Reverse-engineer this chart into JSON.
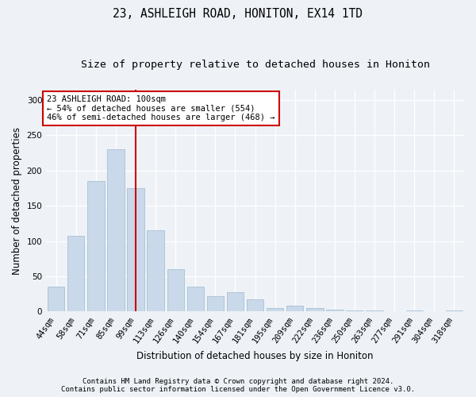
{
  "title": "23, ASHLEIGH ROAD, HONITON, EX14 1TD",
  "subtitle": "Size of property relative to detached houses in Honiton",
  "xlabel": "Distribution of detached houses by size in Honiton",
  "ylabel": "Number of detached properties",
  "categories": [
    "44sqm",
    "58sqm",
    "71sqm",
    "85sqm",
    "99sqm",
    "113sqm",
    "126sqm",
    "140sqm",
    "154sqm",
    "167sqm",
    "181sqm",
    "195sqm",
    "209sqm",
    "222sqm",
    "236sqm",
    "250sqm",
    "263sqm",
    "277sqm",
    "291sqm",
    "304sqm",
    "318sqm"
  ],
  "values": [
    35,
    107,
    185,
    230,
    175,
    115,
    60,
    35,
    22,
    27,
    17,
    5,
    8,
    5,
    3,
    2,
    1,
    0,
    1,
    0,
    2
  ],
  "bar_color": "#c9d9ea",
  "bar_edge_color": "#a8bfd4",
  "vline_index": 4,
  "vline_color": "#cc0000",
  "annotation_line1": "23 ASHLEIGH ROAD: 100sqm",
  "annotation_line2": "← 54% of detached houses are smaller (554)",
  "annotation_line3": "46% of semi-detached houses are larger (468) →",
  "annotation_box_facecolor": "#ffffff",
  "annotation_box_edgecolor": "#cc0000",
  "ylim": [
    0,
    315
  ],
  "yticks": [
    0,
    50,
    100,
    150,
    200,
    250,
    300
  ],
  "background_color": "#eef2f7",
  "plot_background_color": "#eef2f7",
  "grid_color": "#ffffff",
  "title_fontsize": 10.5,
  "subtitle_fontsize": 9.5,
  "xlabel_fontsize": 8.5,
  "ylabel_fontsize": 8.5,
  "tick_fontsize": 7.5,
  "annotation_fontsize": 7.5,
  "footer_fontsize": 6.5,
  "footer_line1": "Contains HM Land Registry data © Crown copyright and database right 2024.",
  "footer_line2": "Contains public sector information licensed under the Open Government Licence v3.0."
}
